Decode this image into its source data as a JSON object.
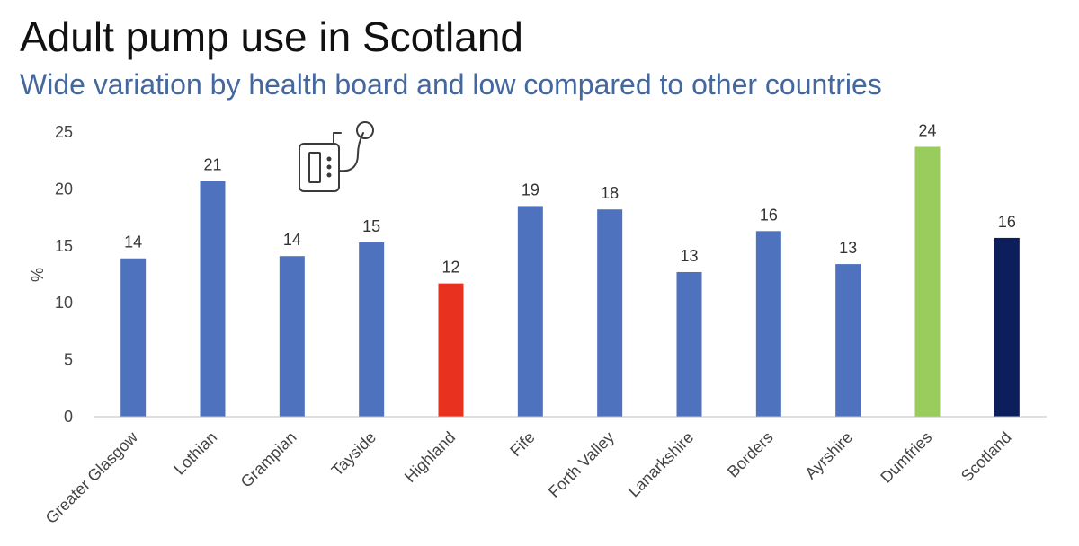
{
  "page": {
    "title": "Adult pump use in Scotland",
    "subtitle": "Wide variation by health board and low compared to other countries"
  },
  "icons": {
    "pump": "insulin-pump-icon"
  },
  "chart_data": {
    "type": "bar",
    "title": "Adult pump use in Scotland",
    "subtitle": "Wide variation by health board and low compared to other countries",
    "xlabel": "",
    "ylabel": "%",
    "ylim": [
      0,
      25
    ],
    "yticks": [
      0,
      5,
      10,
      15,
      20,
      25
    ],
    "grid": false,
    "categories": [
      "Greater Glasgow",
      "Lothian",
      "Grampian",
      "Tayside",
      "Highland",
      "Fife",
      "Forth Valley",
      "Lanarkshire",
      "Borders",
      "Ayrshire",
      "Dumfries",
      "Scotland"
    ],
    "values": [
      13.9,
      20.7,
      14.1,
      15.3,
      11.7,
      18.5,
      18.2,
      12.7,
      16.3,
      13.4,
      23.7,
      15.7
    ],
    "data_labels": [
      "14",
      "21",
      "14",
      "15",
      "12",
      "19",
      "18",
      "13",
      "16",
      "13",
      "24",
      "16"
    ],
    "colors": [
      "#4f72be",
      "#4f72be",
      "#4f72be",
      "#4f72be",
      "#e8311f",
      "#4f72be",
      "#4f72be",
      "#4f72be",
      "#4f72be",
      "#4f72be",
      "#99cc5c",
      "#0c1f5c"
    ]
  }
}
